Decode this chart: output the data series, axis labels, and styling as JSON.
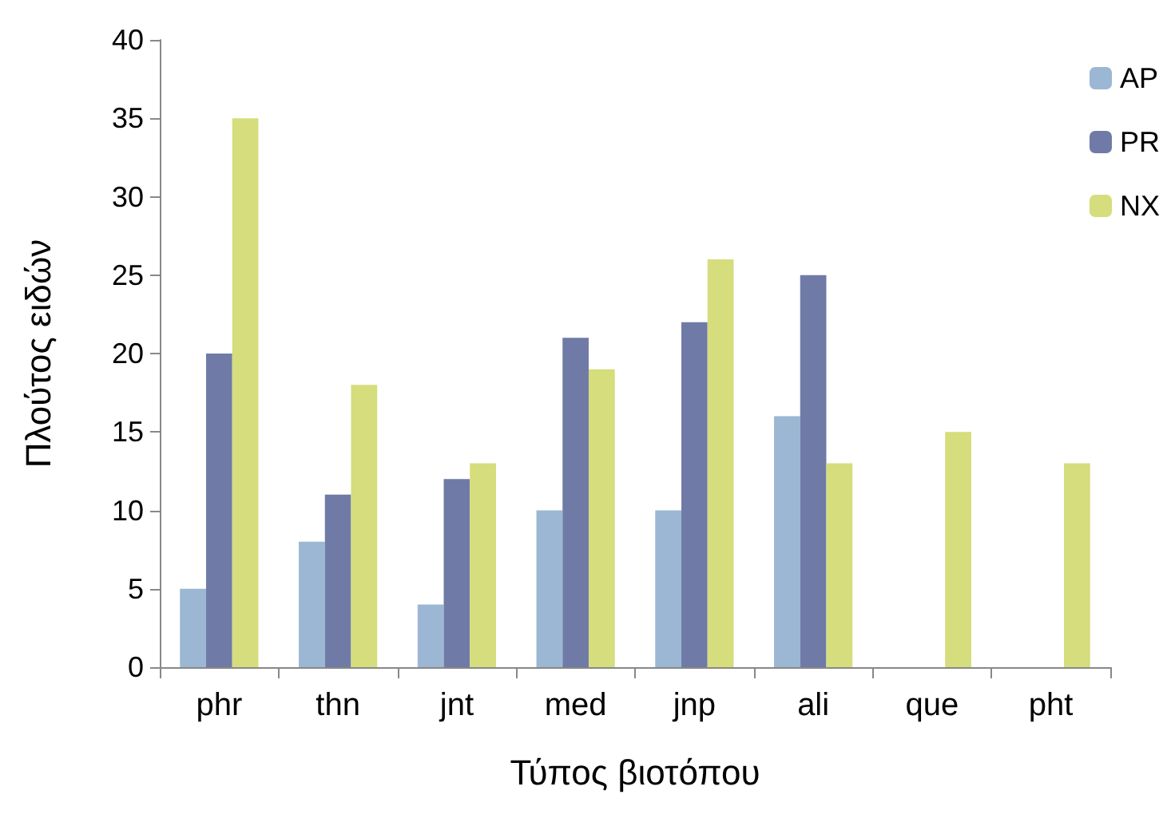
{
  "chart_data": {
    "type": "bar",
    "xlabel": "Τύπος βιοτόπου",
    "ylabel": "Πλούτος ειδών",
    "categories": [
      "phr",
      "thn",
      "jnt",
      "med",
      "jnp",
      "ali",
      "que",
      "pht"
    ],
    "series": [
      {
        "name": "AP",
        "color": "#9bb7d4",
        "values": [
          5,
          8,
          4,
          10,
          10,
          16,
          null,
          null
        ]
      },
      {
        "name": "PR",
        "color": "#6f7ba6",
        "values": [
          20,
          11,
          12,
          21,
          22,
          25,
          null,
          null
        ]
      },
      {
        "name": "NX",
        "color": "#d5dd7c",
        "values": [
          35,
          18,
          13,
          19,
          26,
          13,
          15,
          13
        ]
      }
    ],
    "ylim": [
      0,
      40
    ],
    "yticks": [
      0,
      5,
      10,
      15,
      20,
      25,
      30,
      35,
      40
    ],
    "grid": false,
    "legend": "top right"
  }
}
